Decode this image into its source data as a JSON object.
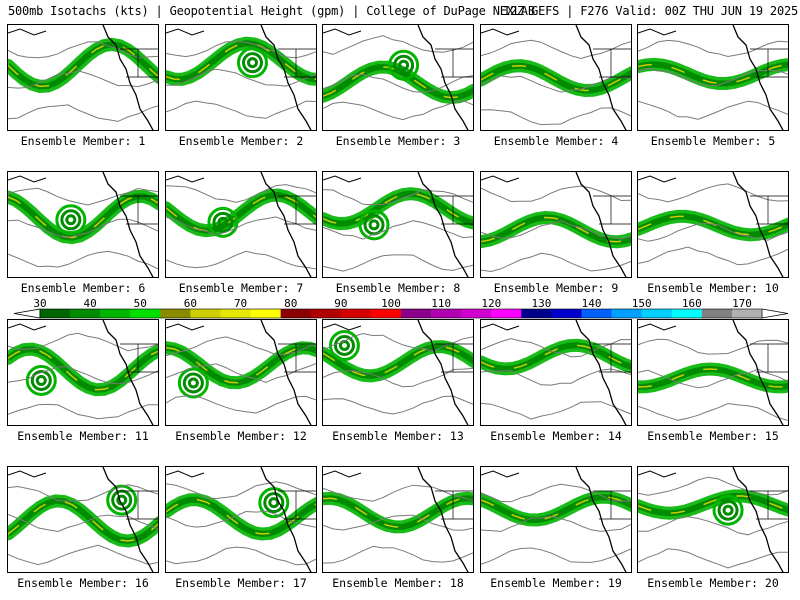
{
  "header": {
    "title": "500mb Isotachs (kts) | Geopotential Height (gpm) | College of DuPage NEXLAB",
    "run_info": "12Z GEFS | F276 Valid: 00Z THU JUN 19 2025"
  },
  "members": [
    {
      "label": "Ensemble Member: 1"
    },
    {
      "label": "Ensemble Member: 2"
    },
    {
      "label": "Ensemble Member: 3"
    },
    {
      "label": "Ensemble Member: 4"
    },
    {
      "label": "Ensemble Member: 5"
    },
    {
      "label": "Ensemble Member: 6"
    },
    {
      "label": "Ensemble Member: 7"
    },
    {
      "label": "Ensemble Member: 8"
    },
    {
      "label": "Ensemble Member: 9"
    },
    {
      "label": "Ensemble Member: 10"
    },
    {
      "label": "Ensemble Member: 11"
    },
    {
      "label": "Ensemble Member: 12"
    },
    {
      "label": "Ensemble Member: 13"
    },
    {
      "label": "Ensemble Member: 14"
    },
    {
      "label": "Ensemble Member: 15"
    },
    {
      "label": "Ensemble Member: 16"
    },
    {
      "label": "Ensemble Member: 17"
    },
    {
      "label": "Ensemble Member: 18"
    },
    {
      "label": "Ensemble Member: 19"
    },
    {
      "label": "Ensemble Member: 20"
    }
  ],
  "color_scale": {
    "tick_labels": [
      "30",
      "40",
      "50",
      "60",
      "70",
      "80",
      "90",
      "100",
      "110",
      "120",
      "130",
      "140",
      "150",
      "160",
      "170"
    ],
    "colors": [
      "#006400",
      "#008b00",
      "#00b400",
      "#00e000",
      "#8b8b00",
      "#cdcd00",
      "#e6e600",
      "#ffff00",
      "#8b0000",
      "#b00000",
      "#d40000",
      "#ff0000",
      "#8b008b",
      "#b000b0",
      "#d000d0",
      "#ff00ff",
      "#00008b",
      "#0000cd",
      "#0060ff",
      "#00a0ff",
      "#00d0ff",
      "#00ffff",
      "#808080",
      "#b0b0b0"
    ]
  }
}
